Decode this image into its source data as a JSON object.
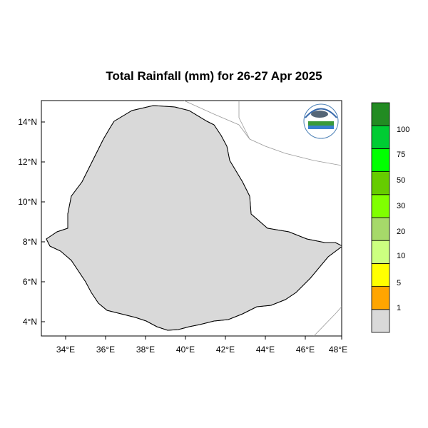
{
  "title": "Total Rainfall (mm) for 26-27 Apr 2025",
  "axes": {
    "lat_ticks": [
      "4°N",
      "6°N",
      "8°N",
      "10°N",
      "12°N",
      "14°N"
    ],
    "lon_ticks": [
      "34°E",
      "36°E",
      "38°E",
      "40°E",
      "42°E",
      "44°E",
      "46°E",
      "48°E"
    ]
  },
  "colorbar": {
    "bins": [
      {
        "color": "#d9d9d9"
      },
      {
        "color": "#ffa500"
      },
      {
        "color": "#ffff00"
      },
      {
        "color": "#ccff80"
      },
      {
        "color": "#a6d96a"
      },
      {
        "color": "#80ff00"
      },
      {
        "color": "#66cc00"
      },
      {
        "color": "#00ff00"
      },
      {
        "color": "#00cc33"
      },
      {
        "color": "#228b22"
      }
    ],
    "labels": [
      "1",
      "5",
      "10",
      "20",
      "30",
      "50",
      "75",
      "100"
    ]
  },
  "colors": {
    "country": "#d9d9d9",
    "orange": "#ffa500",
    "yellow": "#ffff00",
    "lightgreen": "#ccff80",
    "midgreen": "#a6d96a",
    "boundary": "#000000",
    "neighbor": "#888888"
  },
  "logo_icon": "ethiopian-meteorology-institute-logo-icon"
}
